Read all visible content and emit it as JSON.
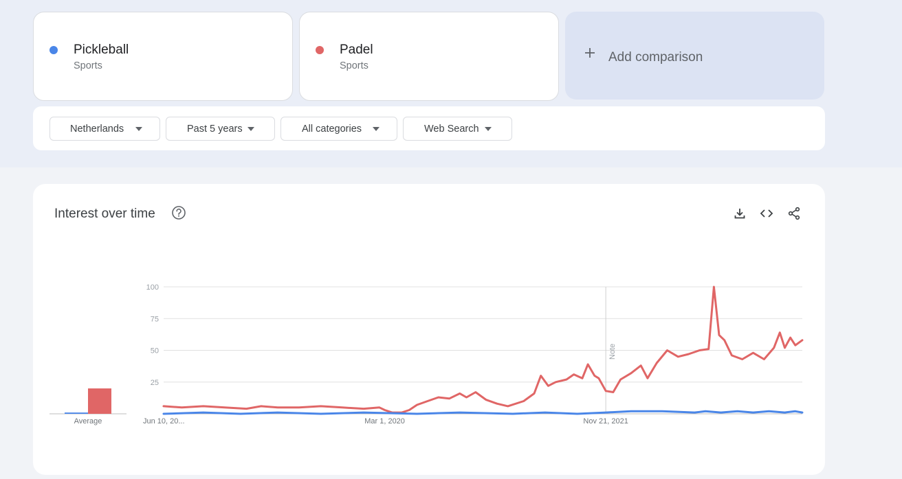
{
  "terms": [
    {
      "name": "Pickleball",
      "type": "Sports",
      "color": "#4a86e8"
    },
    {
      "name": "Padel",
      "type": "Sports",
      "color": "#e06666"
    }
  ],
  "add_comparison": {
    "label": "Add comparison",
    "icon": "plus-icon"
  },
  "filters": [
    {
      "label": "Netherlands",
      "icon": "caret-down-icon"
    },
    {
      "label": "Past 5 years",
      "icon": "caret-down-icon"
    },
    {
      "label": "All categories",
      "icon": "caret-down-icon"
    },
    {
      "label": "Web Search",
      "icon": "caret-down-icon"
    }
  ],
  "chart_card": {
    "title": "Interest over time",
    "icons": [
      "help-icon",
      "download-icon",
      "embed-icon",
      "share-icon"
    ]
  },
  "chart_data": {
    "type": "line",
    "ylim": [
      0,
      100
    ],
    "y_ticks": [
      "100",
      "75",
      "50",
      "25"
    ],
    "x_tick_labels": [
      {
        "label": "Jun 10, 20...",
        "date": "2018-06-10"
      },
      {
        "label": "Mar 1, 2020",
        "date": "2020-03-01"
      },
      {
        "label": "Nov 21, 2021",
        "date": "2021-11-21"
      }
    ],
    "x_range": [
      "2018-06-10",
      "2023-06-04"
    ],
    "grid": true,
    "note": {
      "label": "Note",
      "date": "2021-11-21"
    },
    "average": {
      "label": "Average",
      "values": [
        {
          "series": "Pickleball",
          "value": 1
        },
        {
          "series": "Padel",
          "value": 20
        }
      ]
    },
    "series": [
      {
        "name": "Pickleball",
        "color": "#4a86e8",
        "points": [
          [
            "2018-06-10",
            0
          ],
          [
            "2018-10-01",
            1
          ],
          [
            "2019-01-15",
            0
          ],
          [
            "2019-05-01",
            1
          ],
          [
            "2019-09-01",
            0
          ],
          [
            "2020-01-01",
            1
          ],
          [
            "2020-06-01",
            0
          ],
          [
            "2020-10-01",
            1
          ],
          [
            "2021-03-01",
            0
          ],
          [
            "2021-06-01",
            1
          ],
          [
            "2021-09-01",
            0
          ],
          [
            "2021-11-21",
            1
          ],
          [
            "2022-02-01",
            2
          ],
          [
            "2022-05-01",
            2
          ],
          [
            "2022-08-01",
            1
          ],
          [
            "2022-09-01",
            2
          ],
          [
            "2022-10-15",
            1
          ],
          [
            "2022-12-01",
            2
          ],
          [
            "2023-01-15",
            1
          ],
          [
            "2023-03-01",
            2
          ],
          [
            "2023-04-15",
            1
          ],
          [
            "2023-05-15",
            2
          ],
          [
            "2023-06-04",
            1
          ]
        ]
      },
      {
        "name": "Padel",
        "color": "#e06666",
        "points": [
          [
            "2018-06-10",
            6
          ],
          [
            "2018-08-01",
            5
          ],
          [
            "2018-10-01",
            6
          ],
          [
            "2018-12-01",
            5
          ],
          [
            "2019-02-01",
            4
          ],
          [
            "2019-03-15",
            6
          ],
          [
            "2019-05-01",
            5
          ],
          [
            "2019-07-01",
            5
          ],
          [
            "2019-09-01",
            6
          ],
          [
            "2019-11-01",
            5
          ],
          [
            "2020-01-01",
            4
          ],
          [
            "2020-02-15",
            5
          ],
          [
            "2020-03-01",
            3
          ],
          [
            "2020-03-22",
            1
          ],
          [
            "2020-04-19",
            1
          ],
          [
            "2020-05-10",
            3
          ],
          [
            "2020-06-01",
            7
          ],
          [
            "2020-07-01",
            10
          ],
          [
            "2020-08-01",
            13
          ],
          [
            "2020-09-01",
            12
          ],
          [
            "2020-10-01",
            16
          ],
          [
            "2020-10-20",
            13
          ],
          [
            "2020-11-15",
            17
          ],
          [
            "2020-12-15",
            11
          ],
          [
            "2021-01-15",
            8
          ],
          [
            "2021-02-15",
            6
          ],
          [
            "2021-04-01",
            10
          ],
          [
            "2021-05-01",
            16
          ],
          [
            "2021-05-20",
            30
          ],
          [
            "2021-06-10",
            22
          ],
          [
            "2021-07-01",
            25
          ],
          [
            "2021-08-01",
            27
          ],
          [
            "2021-08-22",
            31
          ],
          [
            "2021-09-15",
            28
          ],
          [
            "2021-10-01",
            39
          ],
          [
            "2021-10-20",
            30
          ],
          [
            "2021-11-01",
            28
          ],
          [
            "2021-11-21",
            18
          ],
          [
            "2021-12-12",
            17
          ],
          [
            "2022-01-02",
            27
          ],
          [
            "2022-02-01",
            32
          ],
          [
            "2022-03-01",
            38
          ],
          [
            "2022-03-20",
            28
          ],
          [
            "2022-04-15",
            40
          ],
          [
            "2022-05-15",
            50
          ],
          [
            "2022-06-15",
            45
          ],
          [
            "2022-07-15",
            47
          ],
          [
            "2022-08-15",
            50
          ],
          [
            "2022-09-10",
            51
          ],
          [
            "2022-09-25",
            100
          ],
          [
            "2022-10-10",
            62
          ],
          [
            "2022-10-25",
            58
          ],
          [
            "2022-11-15",
            46
          ],
          [
            "2022-12-15",
            43
          ],
          [
            "2023-01-15",
            48
          ],
          [
            "2023-02-15",
            43
          ],
          [
            "2023-03-15",
            52
          ],
          [
            "2023-04-01",
            64
          ],
          [
            "2023-04-15",
            52
          ],
          [
            "2023-05-01",
            60
          ],
          [
            "2023-05-15",
            54
          ],
          [
            "2023-06-04",
            58
          ]
        ]
      }
    ]
  }
}
